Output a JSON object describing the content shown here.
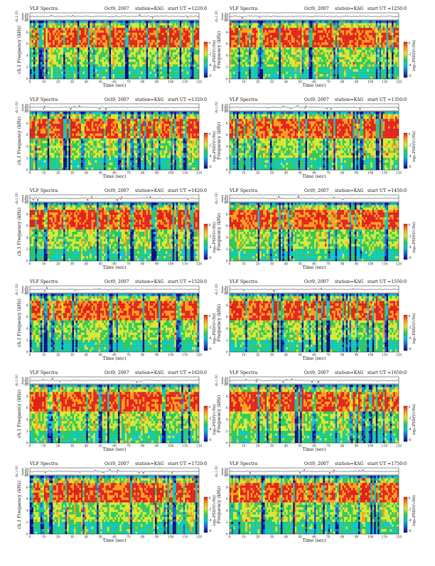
{
  "page_title": "VLF Spectra",
  "common": {
    "title": "VLF Spectra",
    "date": "Oct9, 2007",
    "station": "station=KAG",
    "xlabel": "Time (sec)",
    "ylabel_freq": "Frequency (kHz)",
    "ylabel_wave": "ch.1 (V)",
    "colorbar_label": "log₁₀PSD(V/√Hz)"
  },
  "panels": [
    {
      "start_ut": "start UT =1220:0",
      "ylabel_freq": "ch.1 Frequency (kHz)"
    },
    {
      "start_ut": "start UT =1250:0",
      "ylabel_freq": "Frequency (kHz)"
    },
    {
      "start_ut": "start UT =1320:0",
      "ylabel_freq": "ch.1 Frequency (kHz)"
    },
    {
      "start_ut": "start UT =1350:0",
      "ylabel_freq": "Frequency (kHz)"
    },
    {
      "start_ut": "start UT =1420:0",
      "ylabel_freq": "ch.1 Frequency (kHz)"
    },
    {
      "start_ut": "start UT =1450:0",
      "ylabel_freq": "Frequency (kHz)"
    },
    {
      "start_ut": "start UT =1520:0",
      "ylabel_freq": "ch.1 Frequency (kHz)"
    },
    {
      "start_ut": "start UT =1550:0",
      "ylabel_freq": "Frequency (kHz)"
    },
    {
      "start_ut": "start UT =1620:0",
      "ylabel_freq": "ch.1 Frequency (kHz)"
    },
    {
      "start_ut": "start UT =1650:0",
      "ylabel_freq": "Frequency (kHz)"
    },
    {
      "start_ut": "start UT =1720:0",
      "ylabel_freq": "ch.1 Frequency (kHz)"
    },
    {
      "start_ut": "start UT =1750:0",
      "ylabel_freq": "Frequency (kHz)"
    }
  ],
  "chart_data": {
    "type": "heatmap",
    "title": "VLF Spectra",
    "xlabel": "Time (sec)",
    "ylabel": "Frequency (kHz)",
    "xlim": [
      0,
      120
    ],
    "ylim": [
      0,
      10
    ],
    "x_ticks": [
      0,
      10,
      20,
      30,
      40,
      50,
      60,
      70,
      80,
      90,
      100,
      110,
      120
    ],
    "y_ticks": [
      0,
      2,
      4,
      6,
      8,
      10
    ],
    "wave_ticks": [
      "0.30",
      "0.00",
      "-0.30"
    ],
    "colorbar_ticks": [
      "0",
      "-2",
      "-4",
      "-6"
    ],
    "colorscale": [
      "#08088a",
      "#1f5fd0",
      "#00c8d8",
      "#2ec85a",
      "#d8e832",
      "#ff9d1a",
      "#e0211a"
    ]
  }
}
